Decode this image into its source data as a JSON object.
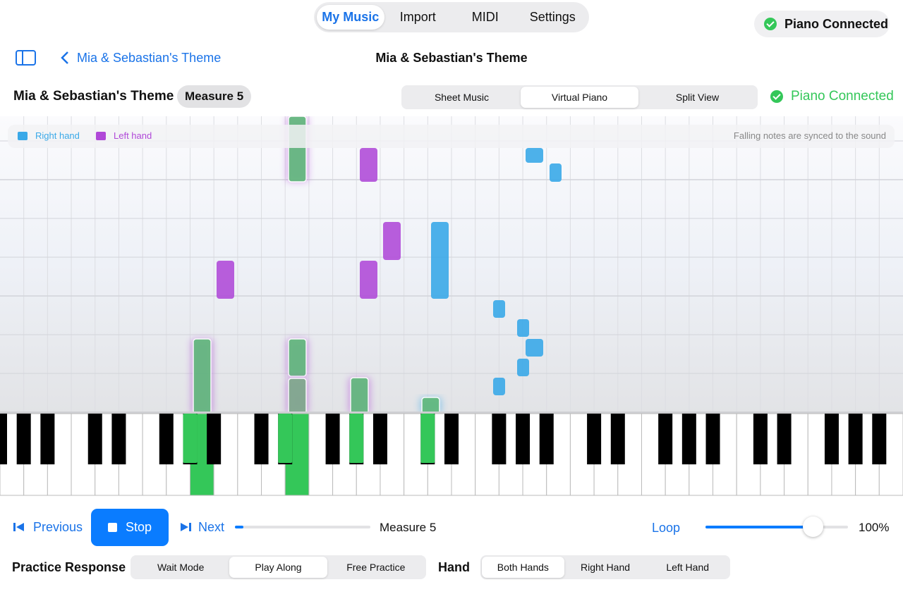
{
  "top_tabs": [
    "My Music",
    "Import",
    "MIDI",
    "Settings"
  ],
  "top_status": "Piano Connected",
  "nav": {
    "back": "Mia & Sebastian's Theme",
    "title": "Mia & Sebastian's Theme"
  },
  "toolbar": {
    "song": "Mia & Sebastian's Theme",
    "measure_badge": "Measure 5",
    "views": [
      "Sheet Music",
      "Virtual Piano",
      "Split View"
    ],
    "status": "Piano Connected"
  },
  "legend": {
    "right": "Right hand",
    "left": "Left hand",
    "note": "Falling notes are synced to the sound"
  },
  "transport": {
    "previous": "Previous",
    "stop": "Stop",
    "next": "Next",
    "measure": "Measure 5",
    "loop": "Loop",
    "tempo": "100%"
  },
  "practice": {
    "label": "Practice Response",
    "modes": [
      "Wait Mode",
      "Play Along",
      "Free Practice"
    ],
    "hand_label": "Hand",
    "hands": [
      "Both Hands",
      "Right Hand",
      "Left Hand"
    ]
  }
}
